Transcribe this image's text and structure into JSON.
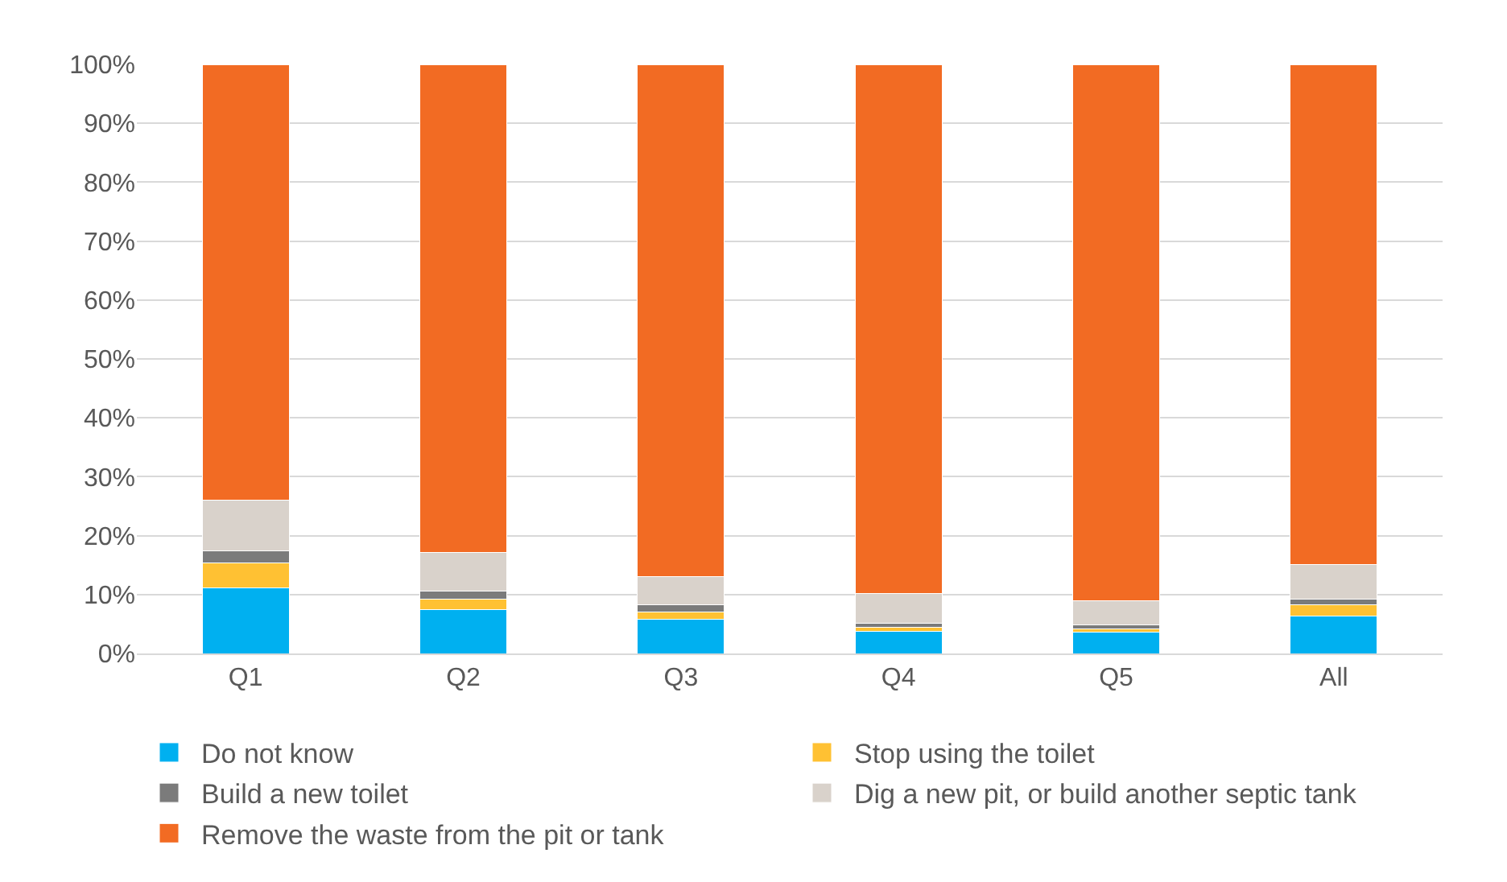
{
  "chart_data": {
    "type": "bar",
    "stacked": true,
    "categories": [
      "Q1",
      "Q2",
      "Q3",
      "Q4",
      "Q5",
      "All"
    ],
    "series": [
      {
        "name": "Do not know",
        "color": "#00b0f0",
        "values": [
          11.2,
          7.5,
          5.8,
          3.7,
          3.6,
          6.4
        ]
      },
      {
        "name": "Stop using the toilet",
        "color": "#ffc133",
        "values": [
          4.2,
          1.7,
          1.3,
          0.7,
          0.5,
          1.8
        ]
      },
      {
        "name": "Build a new toilet",
        "color": "#7b7b7b",
        "values": [
          2.0,
          1.4,
          1.1,
          0.7,
          0.7,
          1.0
        ]
      },
      {
        "name": "Dig a new pit, or build another septic tank",
        "color": "#d9d2cb",
        "values": [
          8.6,
          6.5,
          4.8,
          5.1,
          4.1,
          5.9
        ]
      },
      {
        "name": "Remove the waste from the pit or tank",
        "color": "#f26b23",
        "values": [
          74.0,
          82.9,
          87.0,
          89.8,
          91.1,
          84.9
        ]
      }
    ],
    "ylim": [
      0,
      100
    ],
    "yticks": [
      {
        "value": 0,
        "label": "0%"
      },
      {
        "value": 10,
        "label": "10%"
      },
      {
        "value": 20,
        "label": "20%"
      },
      {
        "value": 30,
        "label": "30%"
      },
      {
        "value": 40,
        "label": "40%"
      },
      {
        "value": 50,
        "label": "50%"
      },
      {
        "value": 60,
        "label": "60%"
      },
      {
        "value": 70,
        "label": "70%"
      },
      {
        "value": 80,
        "label": "80%"
      },
      {
        "value": 90,
        "label": "90%"
      },
      {
        "value": 100,
        "label": "100%"
      }
    ],
    "grid": "y",
    "legend": "bottom"
  }
}
